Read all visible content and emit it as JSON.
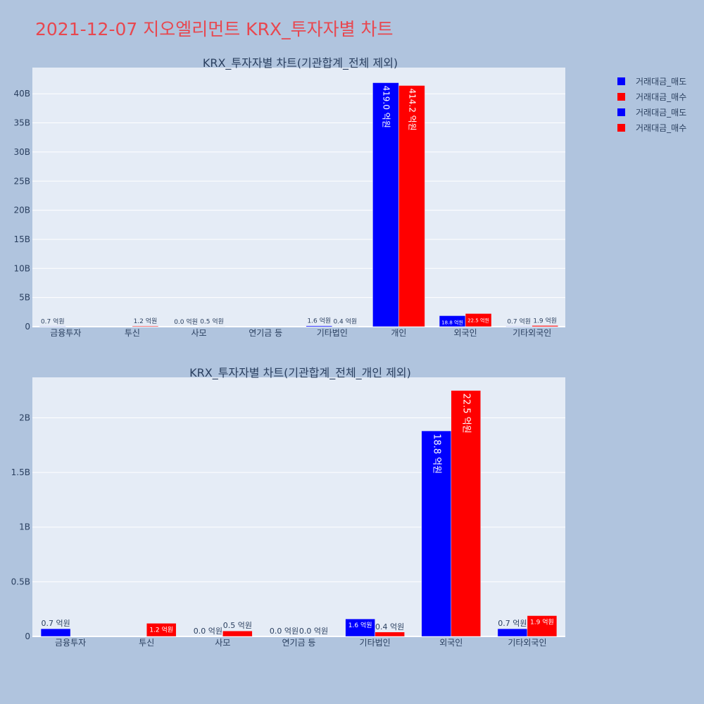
{
  "page_title": "2021-12-07 지오엘리먼트 KRX_투자자별 차트",
  "legend": [
    {
      "label": "거래대금_매도",
      "color": "#0000ff"
    },
    {
      "label": "거래대금_매수",
      "color": "#ff0000"
    },
    {
      "label": "거래대금_매도",
      "color": "#0000ff"
    },
    {
      "label": "거래대금_매수",
      "color": "#ff0000"
    }
  ],
  "colors": {
    "sell": "#0000ff",
    "buy": "#ff0000",
    "plot_bg": "#e5ecf6",
    "page_bg": "#b0c4de"
  },
  "chart_data": [
    {
      "type": "bar",
      "title": "KRX_투자자별 차트(기관합계_전체 제외)",
      "categories": [
        "금융투자",
        "투신",
        "사모",
        "연기금 등",
        "기타법인",
        "개인",
        "외국인",
        "기타외국인"
      ],
      "series": [
        {
          "name": "거래대금_매도",
          "values": [
            0.07,
            null,
            0.0,
            null,
            0.16,
            41.9,
            1.88,
            0.07
          ],
          "labels": [
            "0.7 억원",
            "",
            "0.0 억원",
            "",
            "1.6 억원",
            "419.0 억원",
            "18.8 억원",
            "0.7 억원"
          ]
        },
        {
          "name": "거래대금_매수",
          "values": [
            null,
            0.12,
            0.05,
            null,
            0.04,
            41.42,
            2.25,
            0.19
          ],
          "labels": [
            "",
            "1.2 억원",
            "0.5 억원",
            "",
            "0.4 억원",
            "414.2 억원",
            "22.5 억원",
            "1.9 억원"
          ]
        }
      ],
      "y_ticks": [
        "0",
        "5B",
        "10B",
        "15B",
        "20B",
        "25B",
        "30B",
        "35B",
        "40B"
      ],
      "y_tick_values": [
        0,
        5,
        10,
        15,
        20,
        25,
        30,
        35,
        40
      ],
      "ylim": [
        0,
        44.5
      ],
      "grid": true
    },
    {
      "type": "bar",
      "title": "KRX_투자자별 차트(기관합계_전체_개인 제외)",
      "categories": [
        "금융투자",
        "투신",
        "사모",
        "연기금 등",
        "기타법인",
        "외국인",
        "기타외국인"
      ],
      "series": [
        {
          "name": "거래대금_매도",
          "values": [
            0.07,
            null,
            0.0,
            0.0,
            0.16,
            1.88,
            0.07
          ],
          "labels": [
            "0.7 억원",
            "",
            "0.0 억원",
            "0.0 억원",
            "1.6 억원",
            "18.8 억원",
            "0.7 억원"
          ]
        },
        {
          "name": "거래대금_매수",
          "values": [
            null,
            0.12,
            0.05,
            0.0,
            0.04,
            2.25,
            0.19
          ],
          "labels": [
            "",
            "1.2 억원",
            "0.5 억원",
            "0.0 억원",
            "0.4 억원",
            "22.5 억원",
            "1.9 억원"
          ]
        }
      ],
      "y_ticks": [
        "0",
        "0.5B",
        "1B",
        "1.5B",
        "2B"
      ],
      "y_tick_values": [
        0,
        0.5,
        1,
        1.5,
        2
      ],
      "ylim": [
        0,
        2.37
      ],
      "grid": true
    }
  ]
}
